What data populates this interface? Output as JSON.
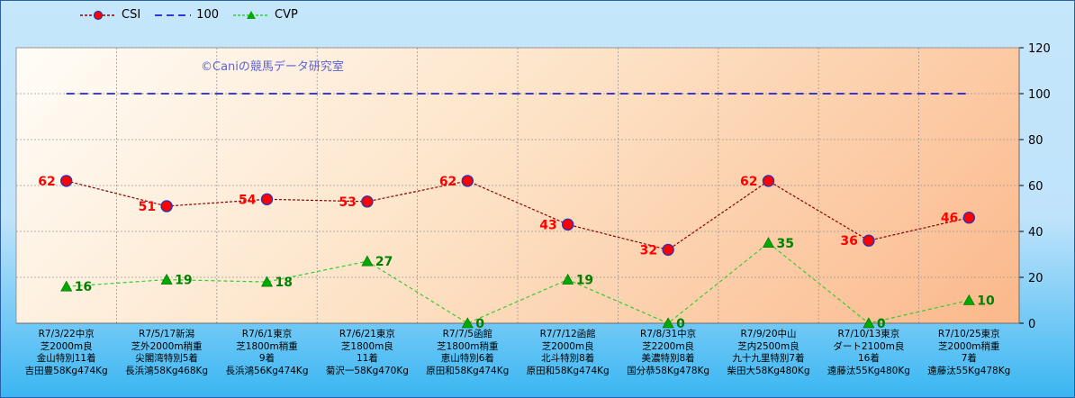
{
  "chart_data": {
    "type": "line",
    "watermark": "©Caniの競馬データ研究室",
    "ylim": [
      0,
      120
    ],
    "yticks": [
      "0",
      "20",
      "40",
      "60",
      "80",
      "100",
      "120"
    ],
    "categories": [
      [
        "R7/3/22中京",
        "芝2000m良",
        "金山特別11着",
        "吉田豊58Kg474Kg"
      ],
      [
        "R7/5/17新潟",
        "芝外2000m稍重",
        "尖閣湾特別5着",
        "長浜鴻58Kg468Kg"
      ],
      [
        "R7/6/1東京",
        "芝1800m稍重",
        "9着",
        "長浜鴻56Kg474Kg"
      ],
      [
        "R7/6/21東京",
        "芝1800m良",
        "11着",
        "菊沢一58Kg470Kg"
      ],
      [
        "R7/7/5函館",
        "芝1800m稍重",
        "恵山特別6着",
        "原田和58Kg474Kg"
      ],
      [
        "R7/7/12函館",
        "芝2000m良",
        "北斗特別8着",
        "原田和58Kg474Kg"
      ],
      [
        "R7/8/31中京",
        "芝2200m良",
        "美濃特別8着",
        "国分恭58Kg478Kg"
      ],
      [
        "R7/9/20中山",
        "芝内2500m良",
        "九十九里特別7着",
        "柴田大58Kg480Kg"
      ],
      [
        "R7/10/13東京",
        "ダート2100m良",
        "16着",
        "遠藤汰55Kg480Kg"
      ],
      [
        "R7/10/25東京",
        "芝2000m稍重",
        "7着",
        "遠藤汰55Kg478Kg"
      ]
    ],
    "series": [
      {
        "name": "CSI",
        "values": [
          62,
          51,
          54,
          53,
          62,
          43,
          32,
          62,
          36,
          46
        ],
        "color": "#8b0000",
        "marker_color": "#ff0000",
        "label_color": "#ff0000"
      },
      {
        "name": "100",
        "values": [
          100,
          100,
          100,
          100,
          100,
          100,
          100,
          100,
          100,
          100
        ],
        "color": "#0000cc"
      },
      {
        "name": "CVP",
        "values": [
          16,
          19,
          18,
          27,
          0,
          19,
          0,
          35,
          0,
          10
        ],
        "color": "#33cc33",
        "marker_color": "#00aa00",
        "label_color": "#008000"
      }
    ],
    "grid": true,
    "legend_position": "top-left"
  }
}
